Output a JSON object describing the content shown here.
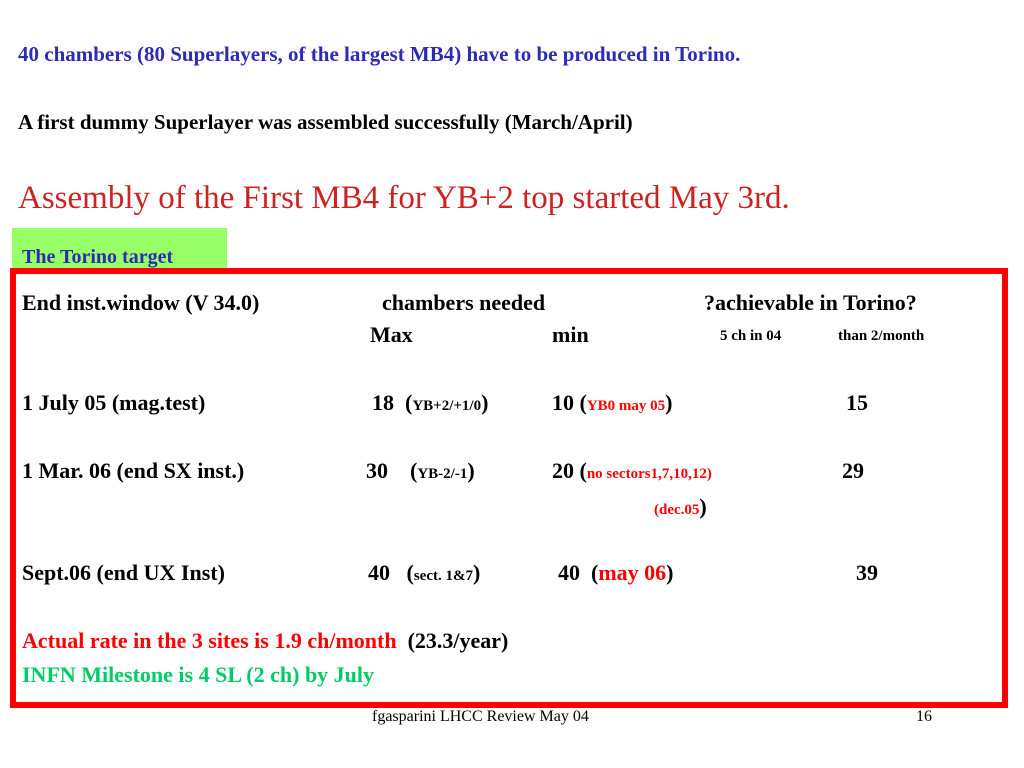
{
  "intro": {
    "line1": "40 chambers (80 Superlayers, of the largest MB4) have to be produced in Torino.",
    "line2": "A first dummy Superlayer was assembled successfully (March/April)",
    "line3": "Assembly of the First MB4 for YB+2 top started May 3rd."
  },
  "target": {
    "label": "The Torino target",
    "header": {
      "col1": "End inst.window (V 34.0)",
      "col2": "chambers needed",
      "col3": "?achievable in Torino?",
      "max": "Max",
      "min": "min",
      "note_a": "5 ch in 04",
      "note_b": "than 2/month"
    },
    "rows": [
      {
        "window": "1 July 05 (mag.test)",
        "max": "18",
        "max_note": "YB+2/+1/0",
        "min": "10",
        "min_note": "YB0 may 05",
        "achievable": "15"
      },
      {
        "window": "1 Mar. 06 (end SX inst.)",
        "max": "30",
        "max_note": "YB-2/-1",
        "min": "20",
        "min_note": "no sectors1,7,10,12)",
        "min_note2": "(dec.05",
        "achievable": "29"
      },
      {
        "window": "Sept.06 (end UX Inst)",
        "max": "40",
        "max_note": "sect. 1&7",
        "min": "40",
        "min_note": "may  06",
        "achievable": "39"
      }
    ],
    "rate_text": "Actual rate in the 3 sites is  1.9 ch/month",
    "rate_year": "(23.3/year)",
    "milestone": "INFN Milestone is 4 SL  (2 ch)  by July"
  },
  "footer": {
    "text": "fgasparini  LHCC Review May 04",
    "page": "16"
  },
  "colors": {
    "blue_text": "#2b2bb5",
    "red_text": "#cc2222",
    "box_border": "#ff0000",
    "label_bg": "#99ff66",
    "milestone_green": "#00cc66"
  }
}
